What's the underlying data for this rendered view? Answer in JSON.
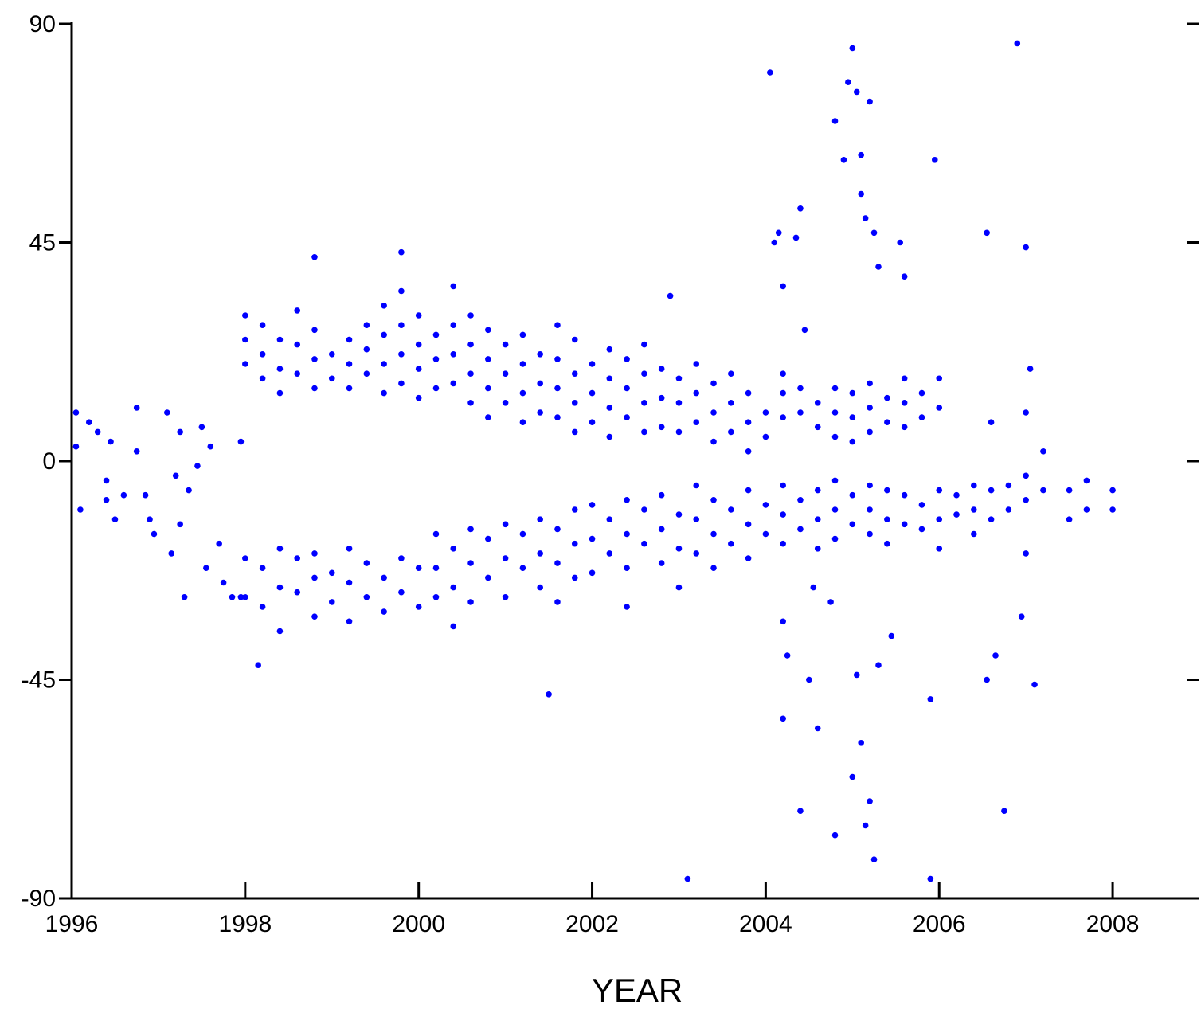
{
  "chart_data": {
    "type": "scatter",
    "x_label": "YEAR",
    "color": "#0000ff",
    "xlim": [
      1996,
      2009
    ],
    "xticks": [
      1996,
      1998,
      2000,
      2002,
      2004,
      2006,
      2008
    ],
    "ylim": [
      -90,
      90
    ],
    "yticks": [
      -90,
      -45,
      0,
      45,
      90
    ],
    "x": [
      1996.05,
      1996.05,
      1996.1,
      1996.2,
      1996.3,
      1996.4,
      1996.4,
      1996.45,
      1996.5,
      1996.6,
      1996.75,
      1996.75,
      1996.85,
      1996.9,
      1996.95,
      1997.1,
      1997.15,
      1997.2,
      1997.25,
      1997.25,
      1997.3,
      1997.35,
      1997.45,
      1997.5,
      1997.55,
      1997.6,
      1997.7,
      1997.75,
      1997.85,
      1997.95,
      1997.95,
      1998.0,
      1998.0,
      1998.0,
      1998.0,
      1998.0,
      1998.2,
      1998.2,
      1998.2,
      1998.2,
      1998.2,
      1998.4,
      1998.4,
      1998.4,
      1998.4,
      1998.4,
      1998.4,
      1998.6,
      1998.6,
      1998.6,
      1998.6,
      1998.6,
      1998.8,
      1998.8,
      1998.8,
      1998.8,
      1998.8,
      1998.8,
      1999.0,
      1999.0,
      1999.0,
      1999.0,
      1999.2,
      1999.2,
      1999.2,
      1999.2,
      1999.2,
      1999.2,
      1999.4,
      1999.4,
      1999.4,
      1999.4,
      1999.4,
      1999.6,
      1999.6,
      1999.6,
      1999.6,
      1999.6,
      1999.6,
      1999.8,
      1999.8,
      1999.8,
      1999.8,
      1999.8,
      1999.8,
      2000.0,
      2000.0,
      2000.0,
      2000.0,
      2000.0,
      2000.0,
      2000.2,
      2000.2,
      2000.2,
      2000.2,
      2000.2,
      2000.2,
      2000.4,
      2000.4,
      2000.4,
      2000.4,
      2000.4,
      2000.4,
      2000.4,
      2000.6,
      2000.6,
      2000.6,
      2000.6,
      2000.6,
      2000.6,
      2000.6,
      2000.8,
      2000.8,
      2000.8,
      2000.8,
      2000.8,
      2000.8,
      2001.0,
      2001.0,
      2001.0,
      2001.0,
      2001.0,
      2001.0,
      2001.2,
      2001.2,
      2001.2,
      2001.2,
      2001.2,
      2001.2,
      2001.4,
      2001.4,
      2001.4,
      2001.4,
      2001.4,
      2001.4,
      2001.6,
      2001.6,
      2001.6,
      2001.6,
      2001.6,
      2001.6,
      2001.6,
      2001.8,
      2001.8,
      2001.8,
      2001.8,
      2001.8,
      2001.8,
      2001.8,
      2002.0,
      2002.0,
      2002.0,
      2002.0,
      2002.0,
      2002.0,
      2002.2,
      2002.2,
      2002.2,
      2002.2,
      2002.2,
      2002.2,
      2002.4,
      2002.4,
      2002.4,
      2002.4,
      2002.4,
      2002.4,
      2002.4,
      2002.6,
      2002.6,
      2002.6,
      2002.6,
      2002.6,
      2002.6,
      2002.8,
      2002.8,
      2002.8,
      2002.8,
      2002.8,
      2002.8,
      2003.0,
      2003.0,
      2003.0,
      2003.0,
      2003.0,
      2003.0,
      2003.2,
      2003.2,
      2003.2,
      2003.2,
      2003.2,
      2003.2,
      2003.4,
      2003.4,
      2003.4,
      2003.4,
      2003.4,
      2003.4,
      2003.6,
      2003.6,
      2003.6,
      2003.6,
      2003.6,
      2003.8,
      2003.8,
      2003.8,
      2003.8,
      2003.8,
      2003.8,
      2004.0,
      2004.0,
      2004.0,
      2004.0,
      2004.2,
      2004.2,
      2004.2,
      2004.2,
      2004.2,
      2004.2,
      2004.4,
      2004.4,
      2004.4,
      2004.4,
      2004.6,
      2004.6,
      2004.6,
      2004.6,
      2004.6,
      2004.8,
      2004.8,
      2004.8,
      2004.8,
      2004.8,
      2004.8,
      2005.0,
      2005.0,
      2005.0,
      2005.0,
      2005.0,
      2005.2,
      2005.2,
      2005.2,
      2005.2,
      2005.2,
      2005.2,
      2005.4,
      2005.4,
      2005.4,
      2005.4,
      2005.4,
      2005.6,
      2005.6,
      2005.6,
      2005.6,
      2005.6,
      2005.8,
      2005.8,
      2005.8,
      2005.8,
      2006.0,
      2006.0,
      2006.0,
      2006.0,
      2006.0,
      2006.2,
      2006.2,
      2006.4,
      2006.4,
      2006.4,
      2006.6,
      2006.6,
      2006.6,
      2006.8,
      2006.8,
      2007.0,
      2007.0,
      2007.0,
      2007.2,
      2007.2,
      2007.5,
      2007.5,
      2007.7,
      2007.7,
      2008.0,
      2008.0,
      2004.05,
      2004.1,
      2004.15,
      2004.2,
      2004.35,
      2004.4,
      2004.45,
      2004.25,
      2004.2,
      2004.2,
      2004.4,
      2004.5,
      2004.6,
      2004.8,
      2004.9,
      2004.95,
      2005.0,
      2005.05,
      2005.1,
      2005.1,
      2005.15,
      2005.2,
      2005.25,
      2005.3,
      2005.05,
      2005.1,
      2005.15,
      2005.2,
      2005.25,
      2005.0,
      2005.3,
      2004.8,
      2004.75,
      2004.55,
      2005.45,
      2005.55,
      2005.6,
      2003.1,
      2001.5,
      1998.15,
      1998.8,
      1999.8,
      2002.9,
      2005.9,
      2005.9,
      2005.95,
      2006.55,
      2006.65,
      2006.75,
      2006.55,
      2006.9,
      2007.0,
      2007.1,
      2006.95,
      2007.0,
      2007.05
    ],
    "values": [
      10,
      3,
      -10,
      8,
      6,
      -4,
      -8,
      4,
      -12,
      -7,
      11,
      2,
      -7,
      -12,
      -15,
      10,
      -19,
      -3,
      6,
      -13,
      -28,
      -6,
      -1,
      7,
      -22,
      3,
      -17,
      -25,
      -28,
      4,
      -28,
      30,
      25,
      20,
      -20,
      -28,
      28,
      22,
      17,
      -22,
      -30,
      25,
      19,
      14,
      -18,
      -26,
      -35,
      31,
      24,
      18,
      -20,
      -27,
      27,
      21,
      15,
      -19,
      -24,
      -32,
      22,
      17,
      -23,
      -29,
      25,
      20,
      15,
      -18,
      -25,
      -33,
      28,
      23,
      18,
      -21,
      -28,
      32,
      26,
      20,
      14,
      -24,
      -31,
      35,
      28,
      22,
      16,
      -20,
      -27,
      30,
      24,
      19,
      13,
      -22,
      -30,
      26,
      21,
      15,
      -15,
      -22,
      -28,
      36,
      28,
      22,
      16,
      -18,
      -26,
      -34,
      30,
      24,
      18,
      12,
      -14,
      -21,
      -29,
      27,
      21,
      15,
      9,
      -16,
      -24,
      24,
      18,
      12,
      -13,
      -20,
      -28,
      26,
      20,
      14,
      8,
      -15,
      -22,
      22,
      16,
      10,
      -12,
      -19,
      -26,
      28,
      21,
      15,
      9,
      -14,
      -21,
      -29,
      25,
      18,
      12,
      6,
      -10,
      -17,
      -24,
      20,
      14,
      8,
      -9,
      -16,
      -23,
      23,
      17,
      11,
      5,
      -12,
      -19,
      21,
      15,
      9,
      -8,
      -15,
      -22,
      -30,
      24,
      18,
      12,
      6,
      -10,
      -17,
      19,
      13,
      7,
      -7,
      -14,
      -21,
      17,
      12,
      6,
      -11,
      -18,
      -26,
      20,
      14,
      8,
      -5,
      -12,
      -19,
      16,
      10,
      4,
      -8,
      -15,
      -22,
      18,
      12,
      6,
      -10,
      -17,
      14,
      8,
      2,
      -6,
      -13,
      -20,
      10,
      5,
      -9,
      -15,
      18,
      14,
      9,
      -5,
      -11,
      -17,
      15,
      10,
      -8,
      -14,
      12,
      7,
      -6,
      -12,
      -18,
      15,
      10,
      5,
      -4,
      -10,
      -16,
      14,
      9,
      4,
      -7,
      -13,
      16,
      11,
      6,
      -5,
      -10,
      -15,
      13,
      8,
      -6,
      -12,
      -17,
      17,
      12,
      7,
      -7,
      -13,
      14,
      9,
      -9,
      -14,
      17,
      11,
      -6,
      -12,
      -18,
      -7,
      -11,
      -5,
      -10,
      -15,
      8,
      -6,
      -12,
      -5,
      -10,
      10,
      -3,
      -8,
      2,
      -6,
      -12,
      -6,
      -4,
      -10,
      -6,
      -10,
      80,
      45,
      47,
      36,
      46,
      52,
      27,
      -40,
      -33,
      -53,
      -72,
      -45,
      -55,
      70,
      62,
      78,
      85,
      76,
      63,
      55,
      50,
      74,
      47,
      40,
      -44,
      -58,
      -75,
      -70,
      -82,
      -65,
      -42,
      -77,
      -29,
      -26,
      -36,
      45,
      38,
      -86,
      -48,
      -42,
      42,
      43,
      34,
      -49,
      -86,
      62,
      47,
      -40,
      -72,
      -45,
      86,
      44,
      -46,
      -32,
      -19,
      19
    ]
  }
}
